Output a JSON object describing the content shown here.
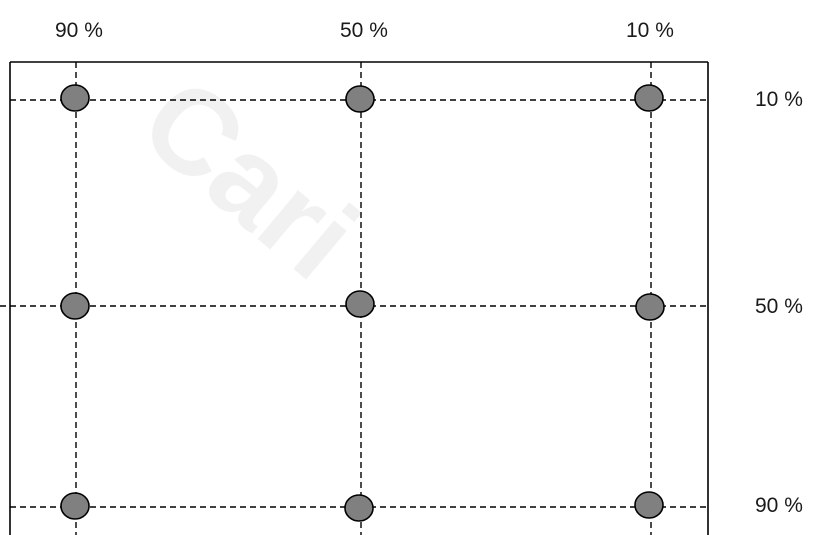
{
  "colors": {
    "point_fill": "#808080",
    "point_stroke": "#000000",
    "line": "#000000",
    "text": "#1a1a1a"
  },
  "top_labels": [
    "90 %",
    "50 %",
    "10 %"
  ],
  "right_labels": [
    "10 %",
    "50 %",
    "90 %"
  ],
  "watermark_text": "Cari"
}
